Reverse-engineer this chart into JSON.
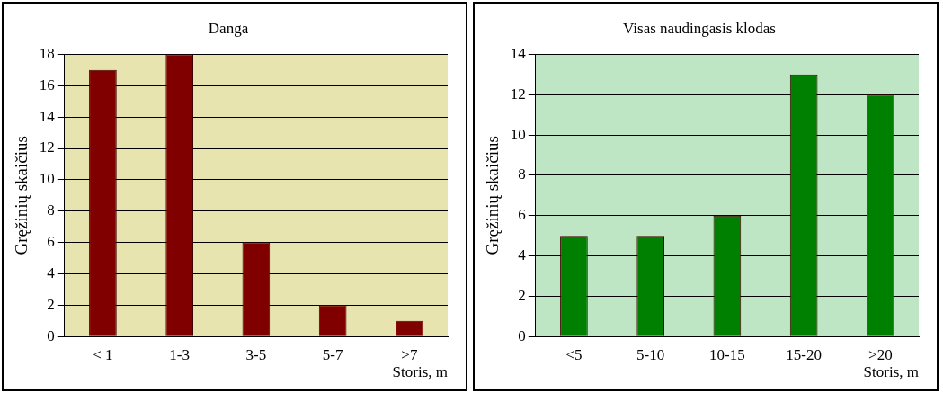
{
  "chart_data": [
    {
      "type": "bar",
      "title": "Danga",
      "xlabel": "Storis, m",
      "ylabel": "Gręžinių skaičius",
      "categories": [
        "< 1",
        "1-3",
        "3-5",
        "5-7",
        ">7"
      ],
      "values": [
        17,
        18,
        6,
        2,
        1
      ],
      "color": "#800000",
      "ylim": [
        0,
        18
      ],
      "yticks": [
        0,
        2,
        4,
        6,
        8,
        10,
        12,
        14,
        16,
        18
      ],
      "grid": "y",
      "legend": false
    },
    {
      "type": "bar",
      "title": "Visas naudingasis klodas",
      "xlabel": "Storis, m",
      "ylabel": "Gręžinių skaičius",
      "categories": [
        "<5",
        "5-10",
        "10-15",
        "15-20",
        ">20"
      ],
      "values": [
        5,
        5,
        6,
        13,
        12
      ],
      "color": "#008000",
      "ylim": [
        0,
        14
      ],
      "yticks": [
        0,
        2,
        4,
        6,
        8,
        10,
        12,
        14
      ],
      "grid": "y",
      "legend": false
    }
  ]
}
